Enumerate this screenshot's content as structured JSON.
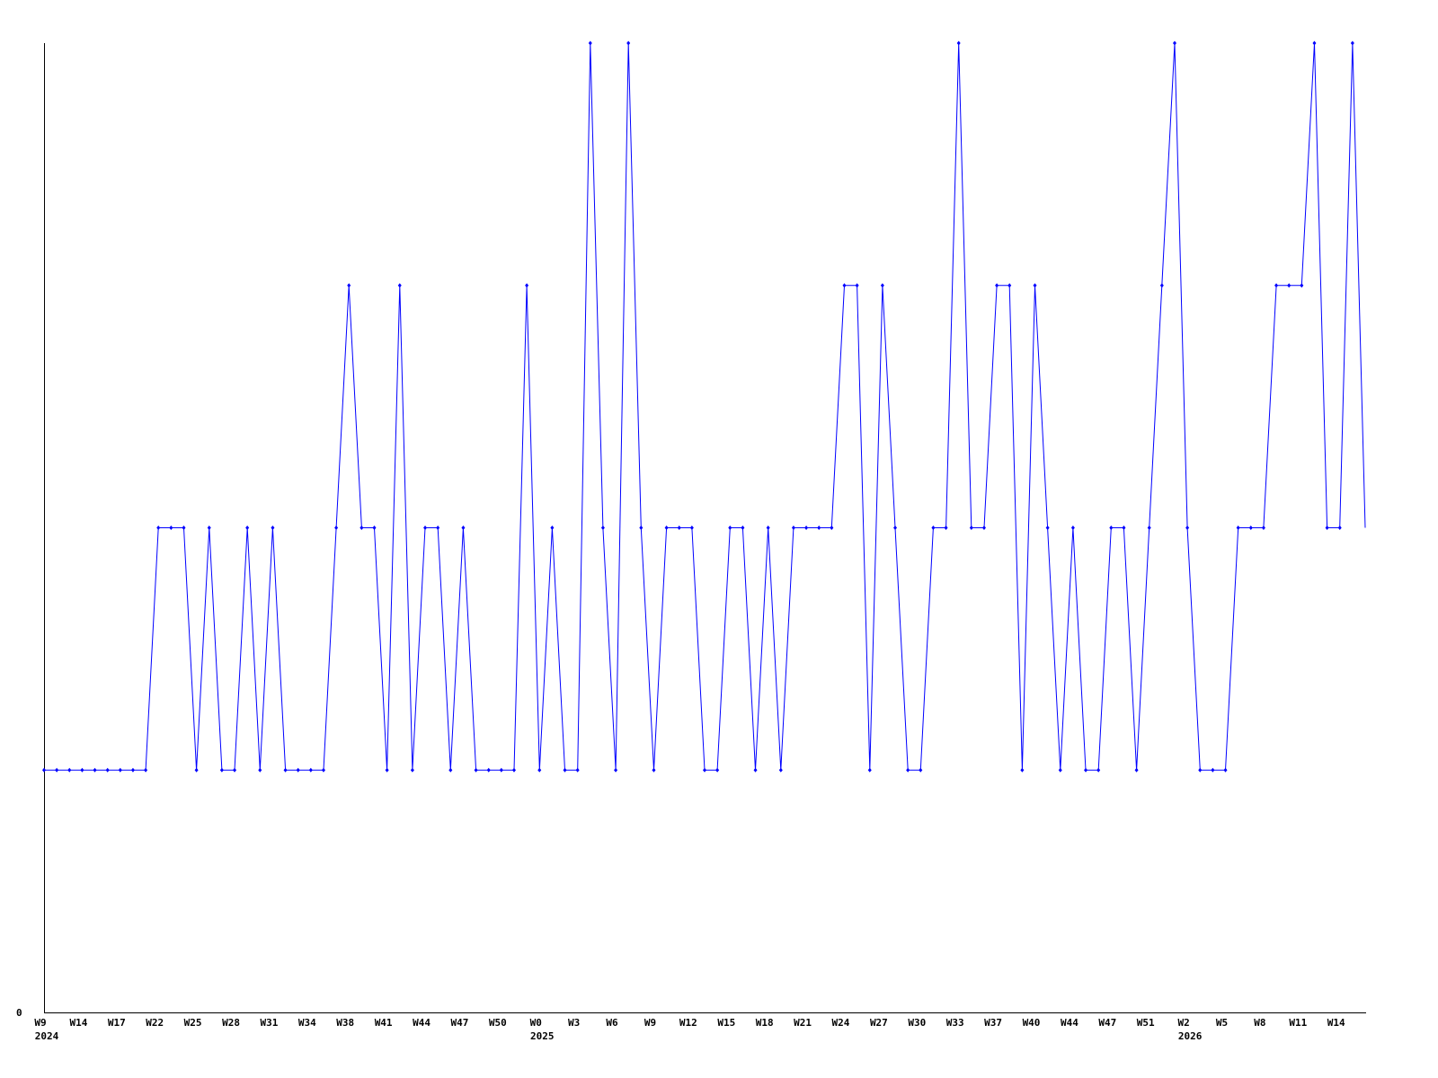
{
  "chart_data": {
    "type": "line",
    "title": "",
    "xlabel": "",
    "ylabel": "",
    "ylim": [
      0,
      4
    ],
    "y_tick_labels": [
      "0"
    ],
    "grid": false,
    "line_color": "#0000ff",
    "axis_color": "#000000",
    "x_tick_labels": [
      "W9",
      "W14",
      "W17",
      "W22",
      "W25",
      "W28",
      "W31",
      "W34",
      "W38",
      "W41",
      "W44",
      "W47",
      "W50",
      "W0",
      "W3",
      "W6",
      "W9",
      "W12",
      "W15",
      "W18",
      "W21",
      "W24",
      "W27",
      "W30",
      "W33",
      "W37",
      "W40",
      "W44",
      "W47",
      "W51",
      "W2",
      "W5",
      "W8",
      "W11",
      "W14"
    ],
    "year_labels": [
      {
        "label": "2024",
        "under_tick": 0
      },
      {
        "label": "2025",
        "under_tick": 13
      },
      {
        "label": "2026",
        "under_tick": 30
      }
    ],
    "tick_every_points": 3,
    "values": [
      1,
      1,
      1,
      1,
      1,
      1,
      1,
      1,
      1,
      2,
      2,
      2,
      1,
      2,
      1,
      1,
      2,
      1,
      2,
      1,
      1,
      1,
      1,
      2,
      3,
      2,
      2,
      1,
      3,
      1,
      2,
      2,
      1,
      2,
      1,
      1,
      1,
      1,
      3,
      1,
      2,
      1,
      1,
      4,
      2,
      1,
      4,
      2,
      1,
      2,
      2,
      2,
      1,
      1,
      2,
      2,
      1,
      2,
      1,
      2,
      2,
      2,
      2,
      3,
      3,
      1,
      3,
      2,
      1,
      1,
      2,
      2,
      4,
      2,
      2,
      3,
      3,
      1,
      3,
      2,
      1,
      2,
      1,
      1,
      2,
      2,
      1,
      2,
      3,
      4,
      2,
      1,
      1,
      1,
      2,
      2,
      2,
      3,
      3,
      3,
      4,
      2,
      2,
      4,
      2
    ]
  }
}
